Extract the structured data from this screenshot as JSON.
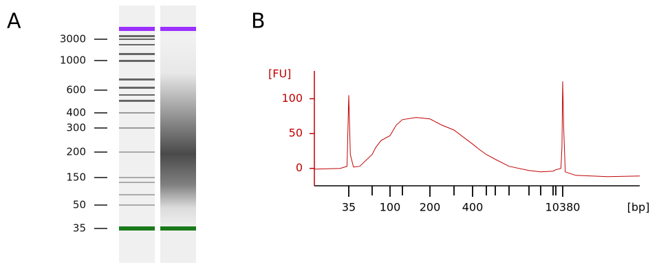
{
  "chart_data": [
    {
      "type": "gel",
      "label": "A",
      "ladder": [
        3000,
        1000,
        600,
        400,
        300,
        200,
        150,
        50,
        35
      ]
    },
    {
      "type": "line",
      "label": "B",
      "ylabel": "[FU]",
      "xlabel": "[bp]",
      "color": "#c00000",
      "x": [
        15,
        30,
        34,
        35,
        36,
        38,
        42,
        50,
        60,
        75,
        100,
        125,
        150,
        175,
        200,
        250,
        300,
        350,
        400,
        450,
        500,
        600,
        700,
        1000,
        2000,
        3000,
        7000,
        9500,
        10000,
        10200,
        10380,
        10500,
        10700,
        12000,
        16000,
        20000
      ],
      "values": [
        -1,
        0,
        3,
        105,
        20,
        2,
        3,
        20,
        30,
        40,
        47,
        62,
        70,
        73,
        71,
        62,
        55,
        45,
        35,
        27,
        20,
        13,
        3,
        -3,
        -5,
        -4,
        -2,
        0,
        30,
        80,
        125,
        60,
        -5,
        -10,
        -12,
        -11
      ],
      "xlim": [
        15,
        20000
      ],
      "xticks": [
        35,
        {
          "value": 50,
          "label": null
        },
        100,
        {
          "value": 150,
          "label": null
        },
        200,
        {
          "value": 300,
          "label": null
        },
        400,
        {
          "value": 500,
          "label": null
        },
        {
          "value": 600,
          "label": null
        },
        {
          "value": 700,
          "label": null
        },
        {
          "value": 1000,
          "label": null
        },
        {
          "value": 2000,
          "label": null
        },
        {
          "value": 3000,
          "label": null
        },
        {
          "value": 7000,
          "label": null
        },
        10380
      ],
      "ylim": [
        -25,
        140
      ],
      "yticks": [
        0,
        50,
        100
      ]
    }
  ]
}
